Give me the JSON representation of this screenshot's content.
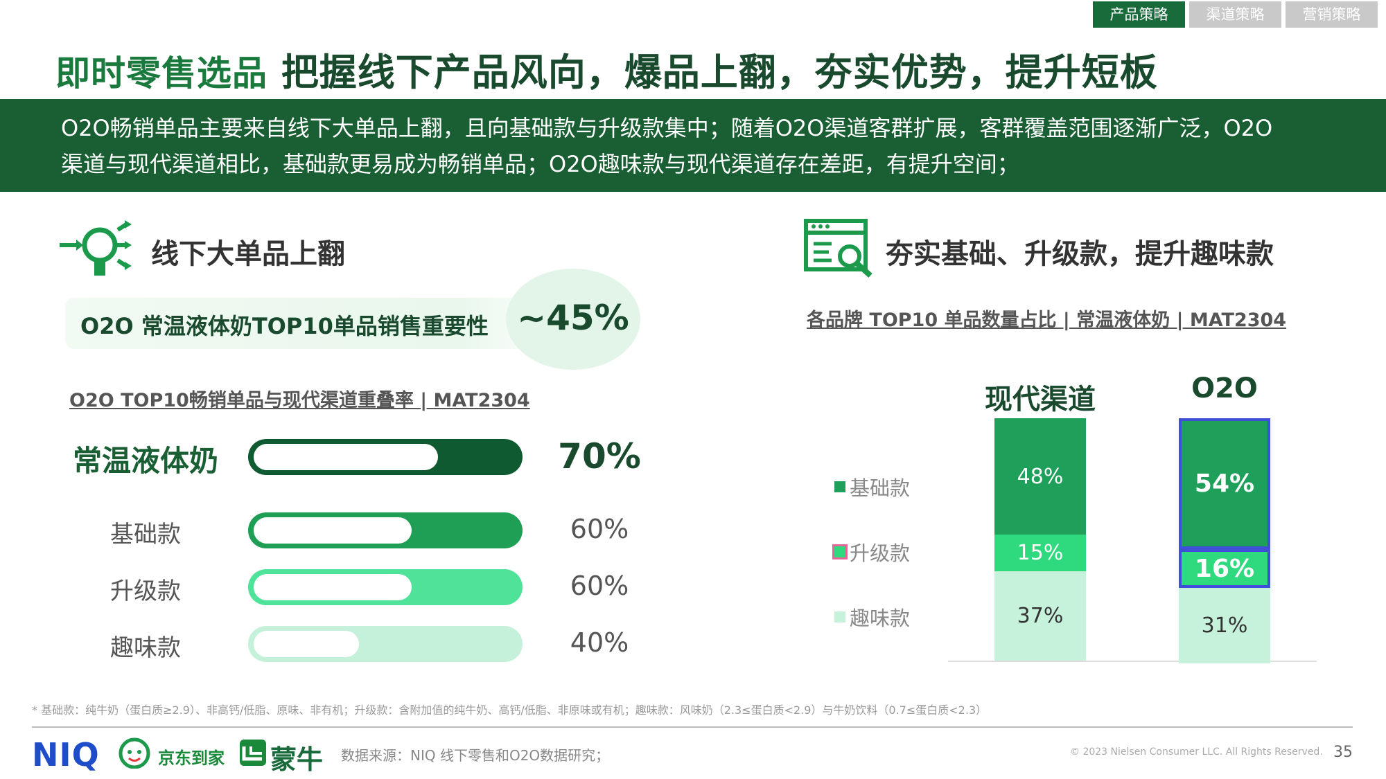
{
  "tabs": [
    {
      "label": "产品策略",
      "active": true
    },
    {
      "label": "渠道策略",
      "active": false
    },
    {
      "label": "营销策略",
      "active": false
    }
  ],
  "title": {
    "highlight": "即时零售选品",
    "main": "把握线下产品风向，爆品上翻，夯实优势，提升短板"
  },
  "banner": {
    "line1": "O2O畅销单品主要来自线下大单品上翻，且向基础款与升级款集中；随着O2O渠道客群扩展，客群覆盖范围逐渐广泛，O2O",
    "line2": "渠道与现代渠道相比，基础款更易成为畅销单品；O2O趣味款与现代渠道存在差距，有提升空间；"
  },
  "left": {
    "section_title": "线下大单品上翻",
    "kpi_label": "O2O 常温液体奶TOP10单品销售重要性",
    "kpi_value": "~45%",
    "chart_title": "O2O TOP10畅销单品与现代渠道重叠率 | MAT2304"
  },
  "right": {
    "section_title": "夯实基础、升级款，提升趣味款",
    "chart_title": "各品牌 TOP10 单品数量占比 | 常温液体奶 | MAT2304"
  },
  "chart_data": [
    {
      "type": "bar",
      "orientation": "horizontal",
      "title": "O2O TOP10畅销单品与现代渠道重叠率 | MAT2304",
      "categories": [
        "常温液体奶",
        "基础款",
        "升级款",
        "趣味款"
      ],
      "values": [
        70,
        60,
        60,
        40
      ],
      "labels": [
        "70%",
        "60%",
        "60%",
        "40%"
      ],
      "ylim": [
        0,
        100
      ],
      "colors": [
        "#0f5a30",
        "#1e9f55",
        "#4fe39a",
        "#c5f1da"
      ]
    },
    {
      "type": "bar",
      "stacked": true,
      "title": "各品牌 TOP10 单品数量占比 | 常温液体奶 | MAT2304",
      "categories": [
        "现代渠道",
        "O2O"
      ],
      "series": [
        {
          "name": "基础款",
          "values": [
            48,
            54
          ],
          "labels": [
            "48%",
            "54%"
          ],
          "color": "#1fa05a"
        },
        {
          "name": "升级款",
          "values": [
            15,
            16
          ],
          "labels": [
            "15%",
            "16%"
          ],
          "color": "#2fd97d"
        },
        {
          "name": "趣味款",
          "values": [
            37,
            31
          ],
          "labels": [
            "37%",
            "31%"
          ],
          "color": "#c6f2dc"
        }
      ],
      "ylim": [
        0,
        100
      ],
      "legend": "left",
      "highlight_category": "O2O",
      "highlight_color": "#3f4fd6"
    }
  ],
  "footer": {
    "footnote": "* 基础款：纯牛奶（蛋白质≥2.9）、非高钙/低脂、原味、非有机；升级款：含附加值的纯牛奶、高钙/低脂、非原味或有机；趣味款：风味奶（2.3≤蛋白质<2.9）与牛奶饮料（0.7≤蛋白质<2.3）",
    "logo_niq": "NIQ",
    "logo_jd": "京东到家",
    "logo_mn": "蒙牛",
    "source": "数据来源：NIQ 线下零售和O2O数据研究；",
    "copyright": "© 2023 Nielsen Consumer LLC. All Rights Reserved.",
    "page": "35"
  }
}
